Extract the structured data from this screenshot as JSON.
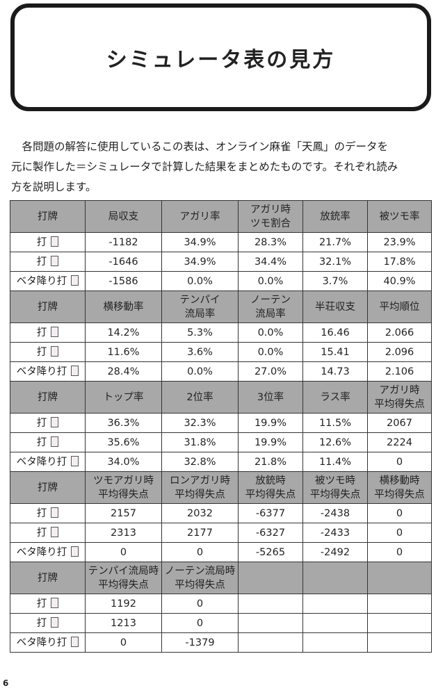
{
  "header": {
    "title": "シミュレータ表の見方"
  },
  "intro": {
    "lines": [
      "　各問題の解答に使用しているこの表は、オンライン麻雀「天鳳」のデータを",
      "元に製作した＝シミュレータで計算した結果をまとめたものです。それぞれ読み",
      "方を説明します。"
    ]
  },
  "table": {
    "sections": [
      {
        "header": [
          "打牌",
          "局収支",
          "アガリ率",
          "アガリ時\nツモ割合",
          "放銃率",
          "被ツモ率"
        ],
        "rows": [
          [
            "打",
            "-1182",
            "34.9%",
            "28.3%",
            "21.7%",
            "23.9%"
          ],
          [
            "打",
            "-1646",
            "34.9%",
            "34.4%",
            "32.1%",
            "17.8%"
          ],
          [
            "ベタ降り打",
            "-1586",
            "0.0%",
            "0.0%",
            "3.7%",
            "40.9%"
          ]
        ]
      },
      {
        "header": [
          "打牌",
          "横移動率",
          "テンパイ\n流局率",
          "ノーテン\n流局率",
          "半荘収支",
          "平均順位"
        ],
        "rows": [
          [
            "打",
            "14.2%",
            "5.3%",
            "0.0%",
            "16.46",
            "2.066"
          ],
          [
            "打",
            "11.6%",
            "3.6%",
            "0.0%",
            "15.41",
            "2.096"
          ],
          [
            "ベタ降り打",
            "28.4%",
            "0.0%",
            "27.0%",
            "14.73",
            "2.106"
          ]
        ]
      },
      {
        "header": [
          "打牌",
          "トップ率",
          "2位率",
          "3位率",
          "ラス率",
          "アガリ時\n平均得失点"
        ],
        "rows": [
          [
            "打",
            "36.3%",
            "32.3%",
            "19.9%",
            "11.5%",
            "2067"
          ],
          [
            "打",
            "35.6%",
            "31.8%",
            "19.9%",
            "12.6%",
            "2224"
          ],
          [
            "ベタ降り打",
            "34.0%",
            "32.8%",
            "21.8%",
            "11.4%",
            "0"
          ]
        ]
      },
      {
        "header": [
          "打牌",
          "ツモアガリ時\n平均得失点",
          "ロンアガリ時\n平均得失点",
          "放銃時\n平均得失点",
          "被ツモ時\n平均得失点",
          "横移動時\n平均得失点"
        ],
        "rows": [
          [
            "打",
            "2157",
            "2032",
            "-6377",
            "-2438",
            "0"
          ],
          [
            "打",
            "2313",
            "2177",
            "-6327",
            "-2433",
            "0"
          ],
          [
            "ベタ降り打",
            "0",
            "0",
            "-5265",
            "-2492",
            "0"
          ]
        ]
      },
      {
        "header": [
          "打牌",
          "テンパイ流局時\n平均得失点",
          "ノーテン流局時\n平均得失点"
        ],
        "rows": [
          [
            "打",
            "1192",
            "0"
          ],
          [
            "打",
            "1213",
            "0"
          ],
          [
            "ベタ降り打",
            "0",
            "-1379"
          ]
        ]
      }
    ]
  },
  "footer": {
    "page": "6"
  }
}
